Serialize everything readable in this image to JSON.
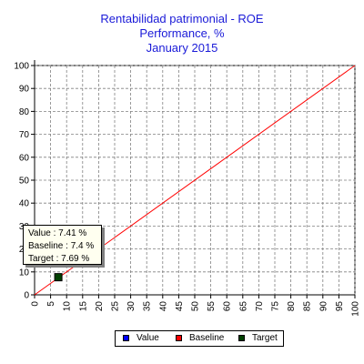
{
  "chart_data": {
    "type": "scatter",
    "title": "Rentabilidad patrimonial - ROE",
    "subtitle": "Performance, %",
    "period": "January 2015",
    "xlim": [
      0,
      100
    ],
    "ylim": [
      0,
      100
    ],
    "x_ticks": [
      0,
      5,
      10,
      15,
      20,
      25,
      30,
      35,
      40,
      45,
      50,
      55,
      60,
      65,
      70,
      75,
      80,
      85,
      90,
      95,
      100
    ],
    "y_ticks": [
      0,
      10,
      20,
      30,
      40,
      50,
      60,
      70,
      80,
      90,
      100
    ],
    "grid": true,
    "legend_position": "bottom",
    "series": [
      {
        "name": "Value",
        "color": "#0000ff",
        "points": []
      },
      {
        "name": "Baseline",
        "color": "#ff0000",
        "kind": "line",
        "points": [
          [
            0,
            0
          ],
          [
            100,
            100
          ]
        ]
      },
      {
        "name": "Target",
        "color": "#004000",
        "marker": "square",
        "points": [
          [
            7.41,
            7.69
          ]
        ]
      }
    ],
    "tooltip": {
      "value": "Value : 7.41 %",
      "baseline": "Baseline : 7.4 %",
      "target": "Target : 7.69 %"
    }
  }
}
